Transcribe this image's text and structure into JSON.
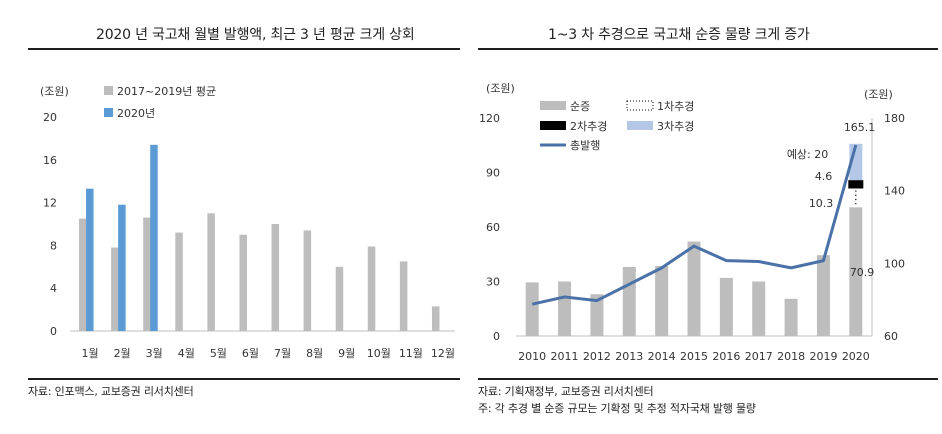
{
  "left": {
    "title": "2020 년 국고채 월별 발행액, 최근 3 년 평균 크게 상회",
    "source": "자료: 인포맥스, 교보증권 리서치센터",
    "chart_data": {
      "type": "bar",
      "unit_label": "(조원)",
      "categories": [
        "1월",
        "2월",
        "3월",
        "4월",
        "5월",
        "6월",
        "7월",
        "8월",
        "9월",
        "10월",
        "11월",
        "12월"
      ],
      "series": [
        {
          "name": "2017~2019년 평균",
          "color": "#bdbdbd",
          "values": [
            10.5,
            7.8,
            10.6,
            9.2,
            11.0,
            9.0,
            10.0,
            9.4,
            6.0,
            7.9,
            6.5,
            2.3
          ]
        },
        {
          "name": "2020년",
          "color": "#5b9bd5",
          "values": [
            13.3,
            11.8,
            17.4,
            null,
            null,
            null,
            null,
            null,
            null,
            null,
            null,
            null
          ]
        }
      ],
      "ylim": [
        0,
        20
      ],
      "yticks": [
        "0",
        "4",
        "8",
        "12",
        "16",
        "20"
      ],
      "grid": false,
      "legend": "top-left"
    }
  },
  "right": {
    "title": "1~3 차 추경으로 국고채 순증 물량 크게 증가",
    "source_lines": [
      "자료: 기획재정부, 교보증권 리서치센터",
      "주: 각 추경 별 순증 규모는 기확정 및 추정 적자국채 발행 물량"
    ],
    "chart_data": {
      "type": "bar",
      "left_unit_label": "(조원)",
      "right_unit_label": "(조원)",
      "categories": [
        "2010",
        "2011",
        "2012",
        "2013",
        "2014",
        "2015",
        "2016",
        "2017",
        "2018",
        "2019",
        "2020"
      ],
      "series": [
        {
          "name": "순증",
          "kind": "bar",
          "axis": "left",
          "color": "#bdbdbd",
          "values": [
            29.5,
            30.0,
            23.0,
            38.0,
            38.5,
            52.0,
            32.0,
            30.0,
            20.5,
            44.5,
            70.9
          ]
        },
        {
          "name": "1차추경",
          "kind": "stack",
          "axis": "left",
          "color": "#ffffff",
          "pattern": "dotted",
          "values": [
            null,
            null,
            null,
            null,
            null,
            null,
            null,
            null,
            null,
            null,
            10.3
          ]
        },
        {
          "name": "2차추경",
          "kind": "stack",
          "axis": "left",
          "color": "#000000",
          "values": [
            null,
            null,
            null,
            null,
            null,
            null,
            null,
            null,
            null,
            null,
            4.6
          ]
        },
        {
          "name": "3차추경",
          "kind": "stack",
          "axis": "left",
          "color": "#b4c7e7",
          "values": [
            null,
            null,
            null,
            null,
            null,
            null,
            null,
            null,
            null,
            null,
            20.0
          ]
        },
        {
          "name": "총발행",
          "kind": "line",
          "axis": "right",
          "color": "#4a72a8",
          "values": [
            77.5,
            81.5,
            79.5,
            88.5,
            97.5,
            109.5,
            101.5,
            101.0,
            97.5,
            101.5,
            165.1
          ]
        }
      ],
      "ylim_left": [
        0,
        120
      ],
      "yticks_left": [
        "0",
        "30",
        "60",
        "90",
        "120"
      ],
      "ylim_right": [
        60,
        180
      ],
      "yticks_right": [
        "60",
        "80",
        "100",
        "120",
        "140",
        "160",
        "180"
      ],
      "annotations": [
        "165.1",
        "예상: 20",
        "4.6",
        "10.3",
        "70.9"
      ],
      "grid": false,
      "legend": "top-left"
    }
  }
}
